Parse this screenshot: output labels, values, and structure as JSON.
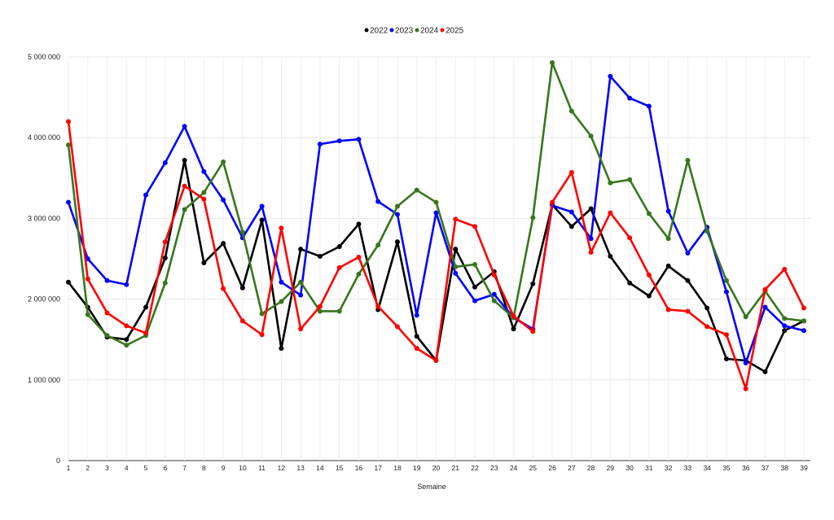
{
  "chart_data": {
    "type": "line",
    "title": "",
    "xlabel": "Semaine",
    "ylabel": "",
    "ylim": [
      0,
      5000000
    ],
    "yticks": [
      0,
      1000000,
      2000000,
      3000000,
      4000000,
      5000000
    ],
    "ytick_labels": [
      "0",
      "1 000 000",
      "2 000 000",
      "3 000 000",
      "4 000 000",
      "5 000 000"
    ],
    "x": [
      1,
      2,
      3,
      4,
      5,
      6,
      7,
      8,
      9,
      10,
      11,
      12,
      13,
      14,
      15,
      16,
      17,
      18,
      19,
      20,
      21,
      22,
      23,
      24,
      25,
      26,
      27,
      28,
      29,
      30,
      31,
      32,
      33,
      34,
      35,
      36,
      37,
      38,
      39
    ],
    "grid": true,
    "legend_position": "top-center",
    "series": [
      {
        "name": "2022",
        "color": "#000000",
        "values": [
          2210000,
          1900000,
          1530000,
          1500000,
          1900000,
          2510000,
          3720000,
          2450000,
          2690000,
          2140000,
          2980000,
          1390000,
          2620000,
          2530000,
          2650000,
          2930000,
          1870000,
          2710000,
          1540000,
          1240000,
          2620000,
          2150000,
          2340000,
          1630000,
          2190000,
          3170000,
          2900000,
          3120000,
          2530000,
          2200000,
          2040000,
          2410000,
          2230000,
          1890000,
          1260000,
          1240000,
          1100000,
          1610000,
          1730000
        ]
      },
      {
        "name": "2023",
        "color": "#0000ff",
        "values": [
          3200000,
          2500000,
          2230000,
          2180000,
          3290000,
          3690000,
          4140000,
          3580000,
          3230000,
          2760000,
          3150000,
          2210000,
          2050000,
          3920000,
          3960000,
          3980000,
          3210000,
          3050000,
          1800000,
          3070000,
          2320000,
          1980000,
          2060000,
          1770000,
          1630000,
          3160000,
          3080000,
          2750000,
          4760000,
          4490000,
          4390000,
          3090000,
          2570000,
          2890000,
          2090000,
          1210000,
          1900000,
          1670000,
          1610000
        ]
      },
      {
        "name": "2024",
        "color": "#38761d",
        "values": [
          3910000,
          1810000,
          1550000,
          1430000,
          1550000,
          2200000,
          3110000,
          3320000,
          3700000,
          2830000,
          1820000,
          1970000,
          2210000,
          1850000,
          1850000,
          2310000,
          2670000,
          3150000,
          3350000,
          3200000,
          2400000,
          2430000,
          1980000,
          1770000,
          3010000,
          4930000,
          4330000,
          4020000,
          3440000,
          3480000,
          3060000,
          2750000,
          3720000,
          2840000,
          2230000,
          1780000,
          2100000,
          1760000,
          1730000
        ]
      },
      {
        "name": "2025",
        "color": "#ff0000",
        "values": [
          4200000,
          2250000,
          1830000,
          1670000,
          1580000,
          2710000,
          3400000,
          3240000,
          2130000,
          1730000,
          1560000,
          2880000,
          1630000,
          1910000,
          2390000,
          2520000,
          1910000,
          1660000,
          1390000,
          1240000,
          2990000,
          2900000,
          2300000,
          1790000,
          1600000,
          3200000,
          3570000,
          2580000,
          3070000,
          2760000,
          2300000,
          1870000,
          1850000,
          1660000,
          1560000,
          890000,
          2120000,
          2370000,
          1890000
        ]
      }
    ]
  }
}
